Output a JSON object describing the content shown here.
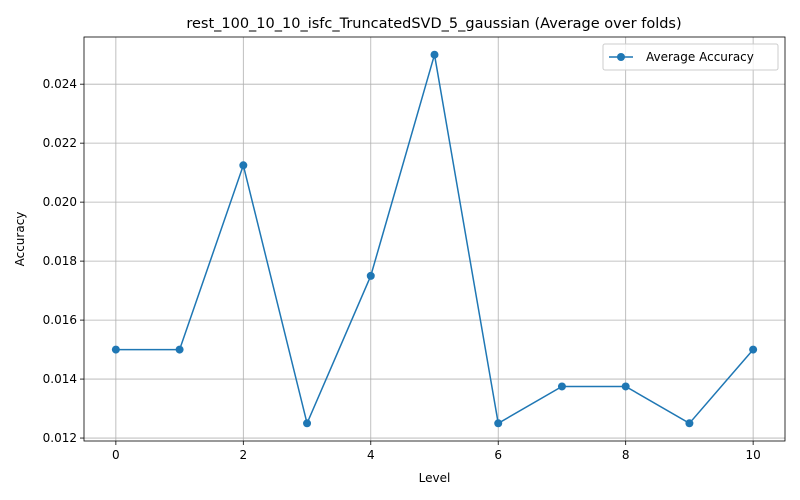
{
  "chart_data": {
    "type": "line",
    "title": "rest_100_10_10_isfc_TruncatedSVD_5_gaussian (Average over folds)",
    "xlabel": "Level",
    "ylabel": "Accuracy",
    "xlim": [
      -0.5,
      10.5
    ],
    "ylim": [
      0.0119,
      0.0256
    ],
    "xticks": [
      0,
      2,
      4,
      6,
      8,
      10
    ],
    "xtick_labels": [
      "0",
      "2",
      "4",
      "6",
      "8",
      "10"
    ],
    "yticks": [
      0.012,
      0.014,
      0.016,
      0.018,
      0.02,
      0.022,
      0.024
    ],
    "ytick_labels": [
      "0.012",
      "0.014",
      "0.016",
      "0.018",
      "0.020",
      "0.022",
      "0.024"
    ],
    "grid": true,
    "legend_position": "top-right",
    "colors": {
      "series": "#1f77b4",
      "grid": "#b0b0b0",
      "axes": "#000000"
    },
    "series": [
      {
        "name": "Average Accuracy",
        "marker": "circle",
        "x": [
          0,
          1,
          2,
          3,
          4,
          5,
          6,
          7,
          8,
          9,
          10
        ],
        "y": [
          0.015,
          0.015,
          0.02125,
          0.0125,
          0.0175,
          0.025,
          0.0125,
          0.01375,
          0.01375,
          0.0125,
          0.015
        ]
      }
    ]
  }
}
